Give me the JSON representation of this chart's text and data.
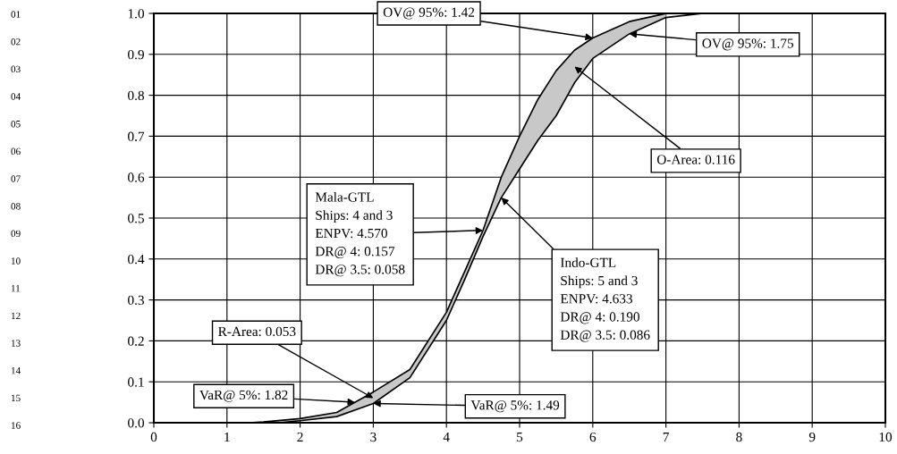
{
  "chart_data": {
    "type": "line",
    "series": [
      {
        "color": "#000000",
        "x": [
          1.3,
          1.5,
          2,
          2.5,
          3,
          3.5,
          4,
          4.25,
          4.5,
          4.75,
          5,
          5.25,
          5.5,
          5.75,
          6,
          6.5,
          7
        ],
        "values": [
          0,
          0.002,
          0.01,
          0.025,
          0.075,
          0.13,
          0.27,
          0.37,
          0.47,
          0.6,
          0.7,
          0.79,
          0.86,
          0.91,
          0.94,
          0.98,
          1.0
        ],
        "lower": [
          0,
          0,
          0.005,
          0.015,
          0.047,
          0.11,
          0.25,
          0.35,
          0.455,
          0.55,
          0.62,
          0.69,
          0.75,
          0.83,
          0.89,
          0.95,
          0.99
        ],
        "upper": [
          0,
          0.002,
          0.01,
          0.025,
          0.075,
          0.13,
          0.27,
          0.37,
          0.47,
          0.6,
          0.7,
          0.79,
          0.86,
          0.91,
          0.94,
          0.98,
          1.0
        ]
      },
      {
        "color": "#000000",
        "x": [
          1.7,
          2,
          2.5,
          3,
          3.5,
          4,
          4.25,
          4.5,
          4.75,
          5,
          5.25,
          5.5,
          5.75,
          6,
          6.5,
          7,
          7.5
        ],
        "values": [
          0,
          0.005,
          0.015,
          0.047,
          0.11,
          0.25,
          0.35,
          0.455,
          0.55,
          0.62,
          0.69,
          0.75,
          0.83,
          0.89,
          0.95,
          0.99,
          1.0
        ]
      }
    ],
    "xlim": [
      0,
      10
    ],
    "xticks": [
      0,
      1,
      2,
      3,
      4,
      5,
      6,
      7,
      8,
      9,
      10
    ],
    "ylim": [
      0,
      1
    ],
    "yticks": [
      {
        "value": 0,
        "label": "0.0"
      },
      {
        "value": 0.1,
        "label": "0.1"
      },
      {
        "value": 0.2,
        "label": "0.2"
      },
      {
        "value": 0.3,
        "label": "0.3"
      },
      {
        "value": 0.4,
        "label": "0.4"
      },
      {
        "value": 0.5,
        "label": "0.5"
      },
      {
        "value": 0.6,
        "label": "0.6"
      },
      {
        "value": 0.7,
        "label": "0.7"
      },
      {
        "value": 0.8,
        "label": "0.8"
      },
      {
        "value": 0.9,
        "label": "0.9"
      },
      {
        "value": 1.0,
        "label": "1.0"
      }
    ],
    "grid": true,
    "marker": "none",
    "line_style": "solid",
    "annotations": [
      {
        "text": "OV@ 95%: 1.42",
        "x": 6,
        "y": 0.94
      },
      {
        "text": "OV@ 95%: 1.75",
        "x": 6.5,
        "y": 0.95
      },
      "O-Area: 0.116",
      "Mala-GTL\nShips: 4 and 3\nENPV: 4.570\nDR@ 4: 0.157\nDR@ 3.5: 0.058",
      {
        "text": "Indo-GTL\nShips: 5 and 3\nENPV: 4.633\nDR@ 4: 0.190\nDR@ 3.5: 0.086",
        "x": 4.75,
        "y": 0.55
      },
      {
        "text": "R-Area: 0.053",
        "x": 3,
        "y": 0.06
      },
      "VaR@ 5%: 1.82",
      {
        "text": "VaR@ 5%: 1.49",
        "x": 3,
        "y": 0.047
      },
      "01",
      "02",
      "03",
      "04",
      "05",
      "06",
      "07",
      "08",
      "09",
      "10",
      "11",
      "12",
      "13",
      "14",
      "15",
      "16"
    ]
  }
}
